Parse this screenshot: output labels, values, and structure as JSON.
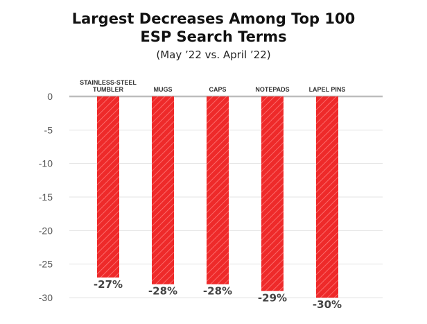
{
  "title_line1": "Largest Decreases Among Top 100",
  "title_line2": "ESP Search Terms",
  "subtitle": "(May ’22 vs. April ’22)",
  "colors": {
    "bar": "#ee2a2a",
    "bar_stripe": "#ff7a7a",
    "grid": "#e3e3e3",
    "zero_line": "#bdbdbd"
  },
  "chart_data": {
    "type": "bar",
    "categories": [
      "STAINLESS-STEEL TUMBLER",
      "MUGS",
      "CAPS",
      "NOTEPADS",
      "LAPEL PINS"
    ],
    "category_lines": [
      [
        "STAINLESS-STEEL",
        "TUMBLER"
      ],
      [
        "MUGS"
      ],
      [
        "CAPS"
      ],
      [
        "NOTEPADS"
      ],
      [
        "LAPEL PINS"
      ]
    ],
    "values": [
      -27,
      -28,
      -28,
      -29,
      -30
    ],
    "data_labels": [
      "-27%",
      "-28%",
      "-28%",
      "-29%",
      "-30%"
    ],
    "ylim": [
      -30,
      0
    ],
    "yticks": [
      0,
      -5,
      -10,
      -15,
      -20,
      -25,
      -30
    ],
    "ytick_labels": [
      "0",
      "-5",
      "-10",
      "-15",
      "-20",
      "-25",
      "-30"
    ],
    "xlabel": "",
    "ylabel": "",
    "grid": true,
    "legend": "none"
  }
}
